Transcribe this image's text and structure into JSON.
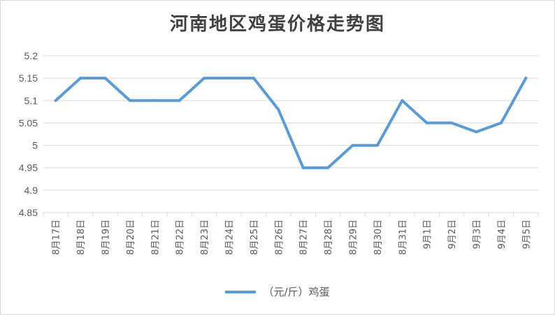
{
  "chart_data": {
    "type": "line",
    "title": "河南地区鸡蛋价格走势图",
    "categories": [
      "8月17日",
      "8月18日",
      "8月19日",
      "8月20日",
      "8月21日",
      "8月22日",
      "8月23日",
      "8月24日",
      "8月25日",
      "8月26日",
      "8月27日",
      "8月28日",
      "8月29日",
      "8月30日",
      "8月31日",
      "9月1日",
      "9月2日",
      "9月3日",
      "9月4日",
      "9月5日"
    ],
    "series": [
      {
        "name": "（元/斤）鸡蛋",
        "color": "#5b9bd5",
        "values": [
          5.1,
          5.15,
          5.15,
          5.1,
          5.1,
          5.1,
          5.15,
          5.15,
          5.15,
          5.08,
          4.95,
          4.95,
          5.0,
          5.0,
          5.1,
          5.05,
          5.05,
          5.03,
          5.05,
          5.15
        ]
      }
    ],
    "yticks": [
      "4.85",
      "4.9",
      "4.95",
      "5",
      "5.05",
      "5.1",
      "5.15",
      "5.2"
    ],
    "ylim": [
      4.85,
      5.2
    ],
    "grid": true,
    "legend_position": "bottom"
  }
}
